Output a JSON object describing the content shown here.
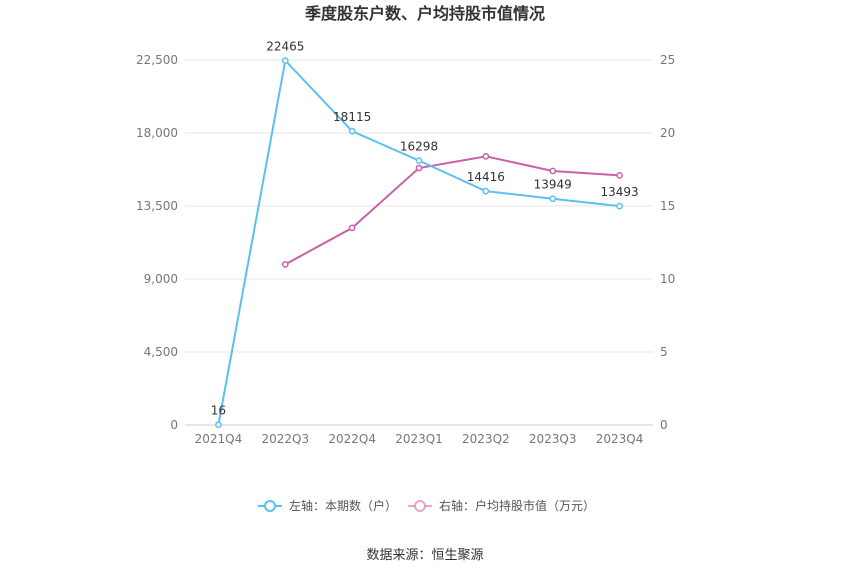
{
  "chart_data": {
    "type": "line",
    "title": "季度股东户数、户均持股市值情况",
    "categories": [
      "2021Q4",
      "2022Q3",
      "2022Q4",
      "2023Q1",
      "2023Q2",
      "2023Q3",
      "2023Q4"
    ],
    "series": [
      {
        "name": "左轴：本期数（户）",
        "axis": "left",
        "color": "#5bc0f0",
        "values": [
          16,
          22465,
          18115,
          16298,
          14416,
          13949,
          13493
        ],
        "labels": [
          "16",
          "22465",
          "18115",
          "16298",
          "14416",
          "13949",
          "13493"
        ]
      },
      {
        "name": "右轴：户均持股市值（万元）",
        "axis": "right",
        "color": "#cc5fa8",
        "values": [
          null,
          11.0,
          13.5,
          17.6,
          18.4,
          17.4,
          17.1
        ]
      }
    ],
    "y_left": {
      "min": 0,
      "max": 22500,
      "ticks": [
        "0",
        "4,500",
        "9,000",
        "13,500",
        "18,000",
        "22,500"
      ]
    },
    "y_right": {
      "min": 0,
      "max": 25,
      "ticks": [
        "0",
        "5",
        "10",
        "15",
        "20",
        "25"
      ]
    },
    "grid": true,
    "legend": "bottom-center"
  },
  "source": "数据来源：恒生聚源"
}
